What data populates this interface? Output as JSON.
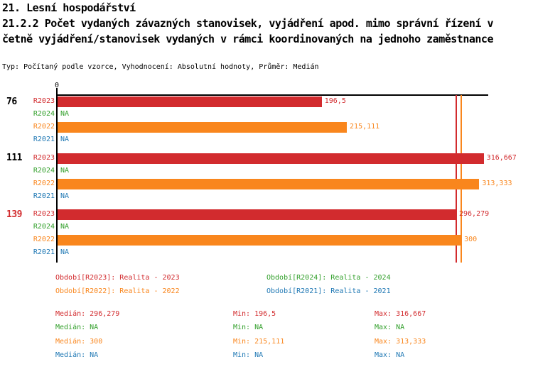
{
  "header": {
    "title_line1": "21. Lesní hospodářství",
    "title_line2": "21.2.2 Počet vydaných závazných stanovisek, vyjádření apod. mimo správní řízení v",
    "title_line3": "četně vyjádření/stanovisek vydaných v rámci koordinovaných na jednoho zaměstnance",
    "meta_line": "Typ: Počítaný podle vzorce, Vyhodnocení: Absolutní hodnoty, Průměr: Medián"
  },
  "colors": {
    "r2023": "#d22b2e",
    "r2024": "#33a02c",
    "r2022": "#f9861d",
    "r2021": "#1f78b4",
    "axis": "#000000",
    "group_label_default": "#000000",
    "group_label_highlight": "#d22b2e"
  },
  "chart_data": {
    "type": "bar",
    "orientation": "horizontal",
    "title": "21.2.2 Počet vydaných závazných stanovisek, vyjádření apod. mimo správní řízení včetně vyjádření/stanovisek vydaných v rámci koordinovaných na jednoho zaměstnance",
    "xlabel": "",
    "ylabel": "",
    "xlim": [
      0,
      320
    ],
    "x_axis_ticks": [
      {
        "value": 0,
        "label": "0"
      }
    ],
    "grid": false,
    "series_order": [
      "R2023",
      "R2024",
      "R2022",
      "R2021"
    ],
    "series_color_keys": {
      "R2023": "r2023",
      "R2024": "r2024",
      "R2022": "r2022",
      "R2021": "r2021"
    },
    "na_text": "NA",
    "groups": [
      {
        "label": "76",
        "highlight": false,
        "bars": [
          {
            "series": "R2023",
            "value": 196.5,
            "value_label": "196,5"
          },
          {
            "series": "R2024",
            "value": null,
            "value_label": "NA"
          },
          {
            "series": "R2022",
            "value": 215.111,
            "value_label": "215,111"
          },
          {
            "series": "R2021",
            "value": null,
            "value_label": "NA"
          }
        ]
      },
      {
        "label": "111",
        "highlight": false,
        "bars": [
          {
            "series": "R2023",
            "value": 316.667,
            "value_label": "316,667"
          },
          {
            "series": "R2024",
            "value": null,
            "value_label": "NA"
          },
          {
            "series": "R2022",
            "value": 313.333,
            "value_label": "313,333"
          },
          {
            "series": "R2021",
            "value": null,
            "value_label": "NA"
          }
        ]
      },
      {
        "label": "139",
        "highlight": true,
        "bars": [
          {
            "series": "R2023",
            "value": 296.279,
            "value_label": "296,279"
          },
          {
            "series": "R2024",
            "value": null,
            "value_label": "NA"
          },
          {
            "series": "R2022",
            "value": 300,
            "value_label": "300"
          },
          {
            "series": "R2021",
            "value": null,
            "value_label": "NA"
          }
        ]
      }
    ],
    "median_lines": [
      {
        "series": "R2023",
        "value": 296.279
      },
      {
        "series": "R2022",
        "value": 300
      }
    ],
    "legend_position": "bottom"
  },
  "legend": {
    "items": [
      {
        "label": "Období[R2023]: Realita - 2023",
        "color_key": "r2023"
      },
      {
        "label": "Období[R2024]: Realita - 2024",
        "color_key": "r2024"
      },
      {
        "label": "Období[R2022]: Realita - 2022",
        "color_key": "r2022"
      },
      {
        "label": "Období[R2021]: Realita - 2021",
        "color_key": "r2021"
      }
    ]
  },
  "stats": {
    "rows": [
      {
        "median": "Medián: 296,279",
        "min": "Min: 196,5",
        "max": "Max: 316,667",
        "color_key": "r2023"
      },
      {
        "median": "Medián: NA",
        "min": "Min: NA",
        "max": "Max: NA",
        "color_key": "r2024"
      },
      {
        "median": "Medián: 300",
        "min": "Min: 215,111",
        "max": "Max: 313,333",
        "color_key": "r2022"
      },
      {
        "median": "Medián: NA",
        "min": "Min: NA",
        "max": "Max: NA",
        "color_key": "r2021"
      }
    ]
  }
}
